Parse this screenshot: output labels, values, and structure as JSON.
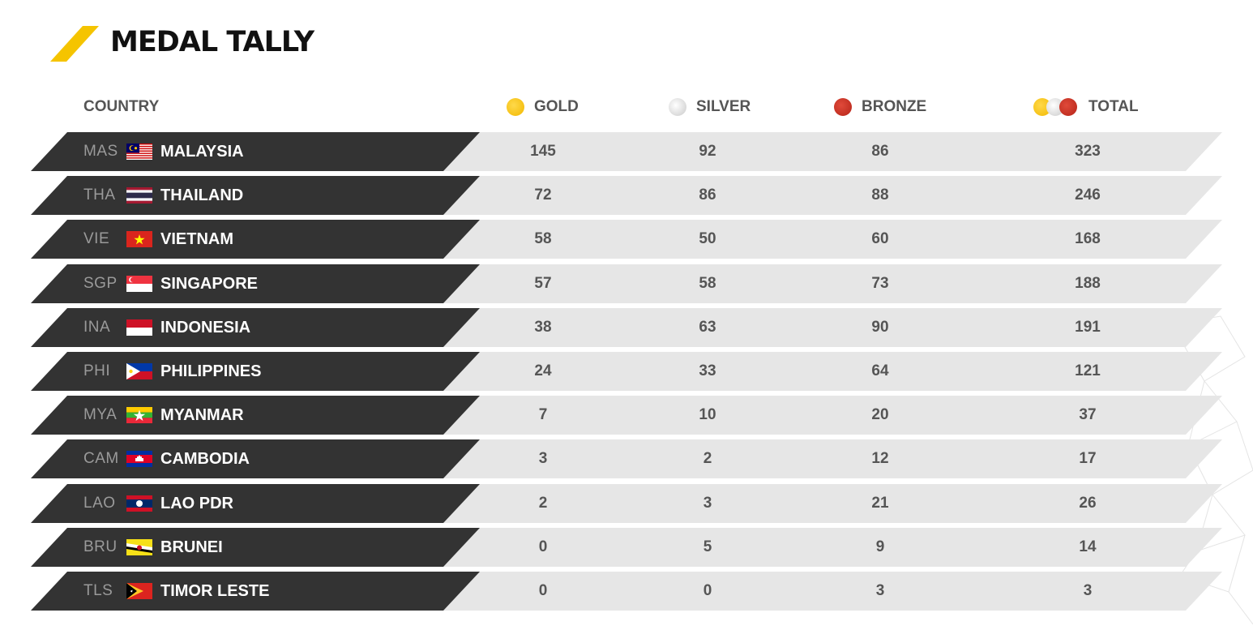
{
  "title": "MEDAL TALLY",
  "colors": {
    "accent_yellow": "#f5c400",
    "country_band": "#333333",
    "stats_band": "#e6e6e6",
    "gold": "#f2b800",
    "silver": "#d0d0d0",
    "bronze": "#c0291b"
  },
  "columns": {
    "country": "COUNTRY",
    "gold": "GOLD",
    "silver": "SILVER",
    "bronze": "BRONZE",
    "total": "TOTAL"
  },
  "rows": [
    {
      "code": "MAS",
      "name": "MALAYSIA",
      "flag": "malaysia-flag-icon",
      "gold": "145",
      "silver": "92",
      "bronze": "86",
      "total": "323"
    },
    {
      "code": "THA",
      "name": "THAILAND",
      "flag": "thailand-flag-icon",
      "gold": "72",
      "silver": "86",
      "bronze": "88",
      "total": "246"
    },
    {
      "code": "VIE",
      "name": "VIETNAM",
      "flag": "vietnam-flag-icon",
      "gold": "58",
      "silver": "50",
      "bronze": "60",
      "total": "168"
    },
    {
      "code": "SGP",
      "name": "SINGAPORE",
      "flag": "singapore-flag-icon",
      "gold": "57",
      "silver": "58",
      "bronze": "73",
      "total": "188"
    },
    {
      "code": "INA",
      "name": "INDONESIA",
      "flag": "indonesia-flag-icon",
      "gold": "38",
      "silver": "63",
      "bronze": "90",
      "total": "191"
    },
    {
      "code": "PHI",
      "name": "PHILIPPINES",
      "flag": "philippines-flag-icon",
      "gold": "24",
      "silver": "33",
      "bronze": "64",
      "total": "121"
    },
    {
      "code": "MYA",
      "name": "MYANMAR",
      "flag": "myanmar-flag-icon",
      "gold": "7",
      "silver": "10",
      "bronze": "20",
      "total": "37"
    },
    {
      "code": "CAM",
      "name": "CAMBODIA",
      "flag": "cambodia-flag-icon",
      "gold": "3",
      "silver": "2",
      "bronze": "12",
      "total": "17"
    },
    {
      "code": "LAO",
      "name": "LAO PDR",
      "flag": "laos-flag-icon",
      "gold": "2",
      "silver": "3",
      "bronze": "21",
      "total": "26"
    },
    {
      "code": "BRU",
      "name": "BRUNEI",
      "flag": "brunei-flag-icon",
      "gold": "0",
      "silver": "5",
      "bronze": "9",
      "total": "14"
    },
    {
      "code": "TLS",
      "name": "TIMOR LESTE",
      "flag": "timor-leste-flag-icon",
      "gold": "0",
      "silver": "0",
      "bronze": "3",
      "total": "3"
    }
  ]
}
